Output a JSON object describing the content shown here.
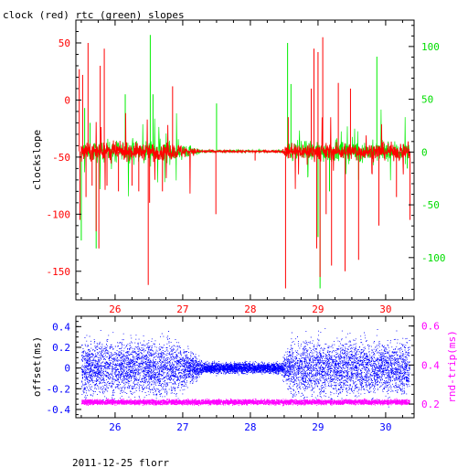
{
  "title": "clock (red) rtc (green) slopes",
  "footer": "2011-12-25 florr",
  "colors": {
    "clock": "#ff0000",
    "rtc": "#00ee00",
    "offset": "#0000ff",
    "rndtrip": "#ff00ff",
    "axis": "#000000"
  },
  "chart_data": [
    {
      "type": "line",
      "title": "clock (red) rtc (green) slopes",
      "ylabel": "clockslope",
      "y2label": "",
      "xlim": [
        25.42,
        30.42
      ],
      "ylim": [
        -175,
        70
      ],
      "y2lim": [
        -140,
        125
      ],
      "grid": false,
      "xticks": [
        26,
        27,
        28,
        29,
        30
      ],
      "yticks": [
        50,
        0,
        -50,
        -100,
        -150
      ],
      "y2ticks": [
        100,
        50,
        0,
        -50,
        -100
      ],
      "baseline": -45,
      "series": [
        {
          "name": "clock",
          "color": "#ff0000",
          "axis": "left",
          "spikes": [
            [
              25.47,
              27
            ],
            [
              25.48,
              -105
            ],
            [
              25.52,
              22
            ],
            [
              25.57,
              -85
            ],
            [
              25.6,
              50
            ],
            [
              25.66,
              -75
            ],
            [
              25.72,
              -115
            ],
            [
              25.76,
              -130
            ],
            [
              25.78,
              30
            ],
            [
              25.84,
              45
            ],
            [
              25.88,
              -75
            ],
            [
              26.05,
              -80
            ],
            [
              26.25,
              -75
            ],
            [
              26.35,
              -80
            ],
            [
              26.49,
              -162
            ],
            [
              26.51,
              -90
            ],
            [
              26.7,
              -80
            ],
            [
              26.85,
              12
            ],
            [
              27.49,
              -100
            ],
            [
              28.07,
              -53
            ],
            [
              28.52,
              -165
            ],
            [
              28.56,
              -15
            ],
            [
              28.9,
              10
            ],
            [
              28.94,
              45
            ],
            [
              28.98,
              -130
            ],
            [
              29.0,
              42
            ],
            [
              29.03,
              -155
            ],
            [
              29.07,
              55
            ],
            [
              29.12,
              -100
            ],
            [
              29.2,
              -145
            ],
            [
              29.3,
              15
            ],
            [
              29.4,
              -150
            ],
            [
              29.48,
              10
            ],
            [
              29.6,
              -140
            ],
            [
              29.8,
              -65
            ],
            [
              29.9,
              -110
            ],
            [
              30.16,
              -85
            ],
            [
              30.36,
              -105
            ]
          ]
        },
        {
          "name": "rtc",
          "color": "#00ee00",
          "axis": "left",
          "spikes": [
            [
              25.5,
              -123
            ],
            [
              25.55,
              -7
            ],
            [
              25.63,
              -20
            ],
            [
              25.72,
              -130
            ],
            [
              25.93,
              -50
            ],
            [
              26.15,
              5
            ],
            [
              26.52,
              57
            ],
            [
              26.56,
              5
            ],
            [
              27.5,
              -3
            ],
            [
              28.55,
              50
            ],
            [
              28.6,
              14
            ],
            [
              29.0,
              -120
            ],
            [
              29.03,
              -165
            ],
            [
              29.17,
              -80
            ],
            [
              29.6,
              -70
            ],
            [
              29.87,
              38
            ],
            [
              30.32,
              -60
            ]
          ]
        }
      ]
    },
    {
      "type": "scatter",
      "ylabel": "offset(ms)",
      "y2label": "rnd-trip(ms)",
      "xlim": [
        25.42,
        30.42
      ],
      "ylim": [
        -0.48,
        0.5
      ],
      "y2lim": [
        0.13,
        0.65
      ],
      "grid": false,
      "xticks": [
        26,
        27,
        28,
        29,
        30
      ],
      "yticks": [
        0.4,
        0.2,
        0,
        -0.2,
        -0.4
      ],
      "y2ticks": [
        0.6,
        0.4,
        0.2
      ],
      "series": [
        {
          "name": "offset",
          "color": "#0000ff",
          "axis": "left",
          "center": 0.0,
          "spread_max": 0.45,
          "spread_min": 0.02
        },
        {
          "name": "rnd-trip",
          "color": "#ff00ff",
          "axis": "right",
          "center": 0.21,
          "spread": 0.012
        }
      ]
    }
  ]
}
